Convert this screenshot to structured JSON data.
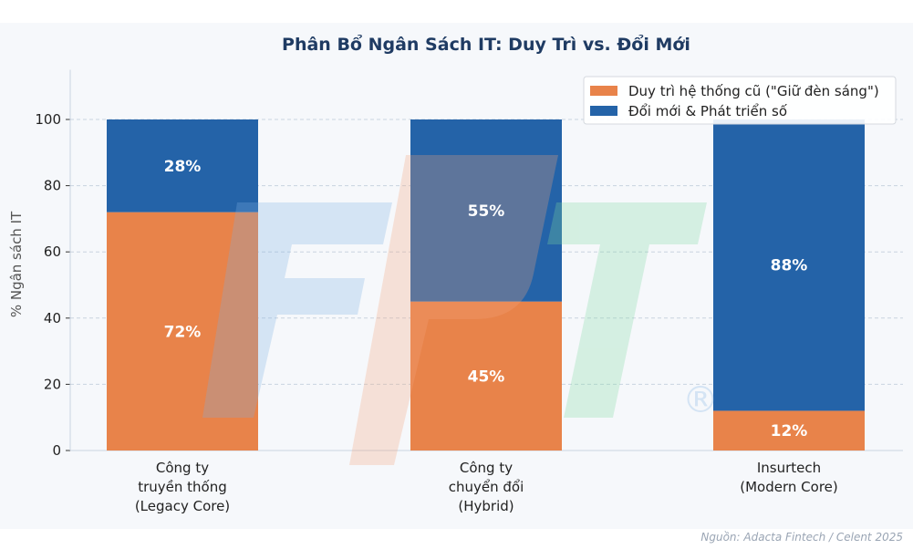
{
  "chart_data": {
    "type": "bar",
    "stacked": true,
    "title": "Phân Bổ Ngân Sách IT: Duy Trì vs. Đổi Mới",
    "ylabel": "% Ngân sách IT",
    "xlabel": "",
    "ylim": [
      0,
      115
    ],
    "yticks": [
      0,
      20,
      40,
      60,
      80,
      100
    ],
    "grid": "horizontal dashed",
    "legend_position": "top-right",
    "categories": [
      [
        "Công ty",
        "truyền thống",
        "(Legacy Core)"
      ],
      [
        "Công ty",
        "chuyển đổi",
        "(Hybrid)"
      ],
      [
        "Insurtech",
        "(Modern Core)"
      ]
    ],
    "series": [
      {
        "name": "Duy trì hệ thống cũ (\"Giữ đèn sáng\")",
        "color": "#e8834a",
        "values": [
          72,
          45,
          12
        ],
        "labels": [
          "72%",
          "45%",
          "12%"
        ]
      },
      {
        "name": "Đổi mới & Phát triển số",
        "color": "#2463a8",
        "values": [
          28,
          55,
          88
        ],
        "labels": [
          "28%",
          "55%",
          "88%"
        ]
      }
    ],
    "source": "Nguồn: Adacta Fintech / Celent 2025",
    "watermark": "FPT"
  }
}
